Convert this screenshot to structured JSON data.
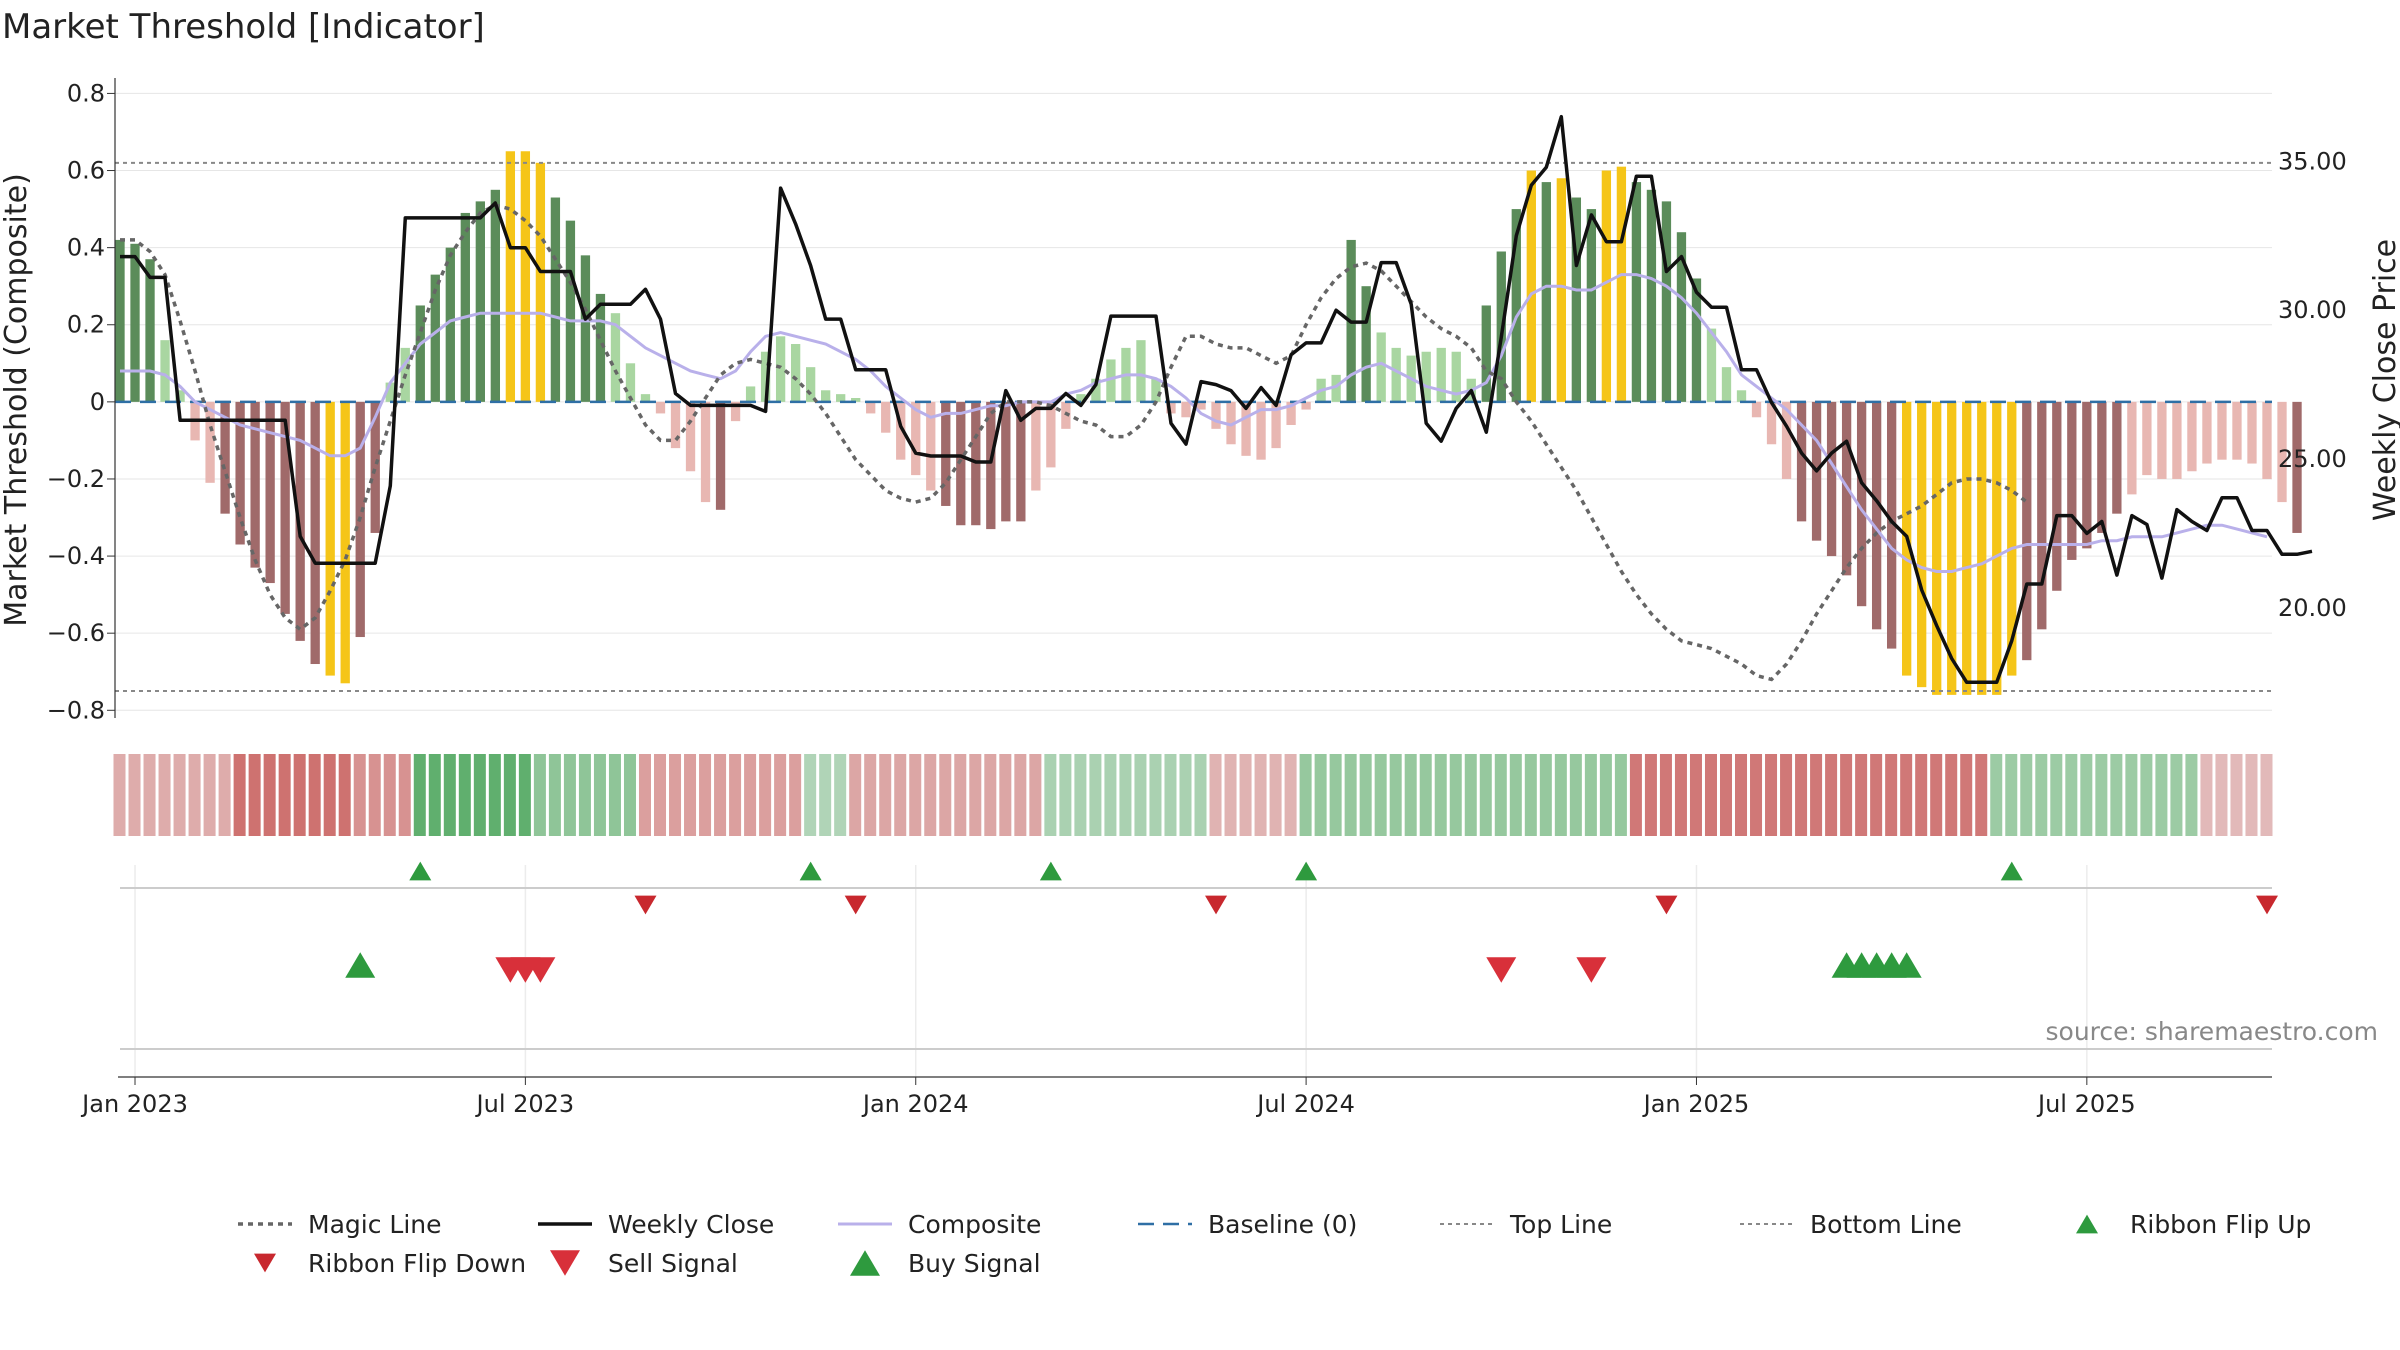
{
  "title": "Market Threshold [Indicator]",
  "source": "source: sharemaestro.com",
  "chart_data": {
    "type": "line",
    "ylabel_left": "Market Threshold (Composite)",
    "ylabel_right": "Weekly Close Price",
    "ylim_left": [
      -0.82,
      0.84
    ],
    "ylim_right": [
      16.3,
      37.8
    ],
    "yticks_left": [
      0.8,
      0.6,
      0.4,
      0.2,
      0,
      -0.2,
      -0.4,
      -0.6,
      -0.8
    ],
    "yticks_left_labels": [
      "0.8",
      "0.6",
      "0.4",
      "0.2",
      "0",
      "−0.2",
      "−0.4",
      "−0.6",
      "−0.8"
    ],
    "yticks_right": [
      35,
      30,
      25,
      20
    ],
    "yticks_right_labels": [
      "35.00",
      "30.00",
      "25.00",
      "20.00"
    ],
    "x_start_week": 0,
    "x_end_week": 143,
    "x_ticks": [
      {
        "label": "Jan 2023",
        "week": 1
      },
      {
        "label": "Jul 2023",
        "week": 27
      },
      {
        "label": "Jan 2024",
        "week": 53
      },
      {
        "label": "Jul 2024",
        "week": 79
      },
      {
        "label": "Jan 2025",
        "week": 105
      },
      {
        "label": "Jul 2025",
        "week": 131
      }
    ],
    "top_line": 0.62,
    "bottom_line": -0.75,
    "baseline": 0,
    "composite_bars": [
      0.42,
      0.41,
      0.37,
      0.16,
      0.03,
      -0.1,
      -0.21,
      -0.29,
      -0.37,
      -0.43,
      -0.47,
      -0.55,
      -0.62,
      -0.68,
      -0.71,
      -0.73,
      -0.61,
      -0.34,
      0.05,
      0.14,
      0.25,
      0.33,
      0.4,
      0.49,
      0.52,
      0.55,
      0.65,
      0.65,
      0.62,
      0.53,
      0.47,
      0.38,
      0.28,
      0.23,
      0.1,
      0.02,
      -0.03,
      -0.12,
      -0.18,
      -0.26,
      -0.28,
      -0.05,
      0.04,
      0.13,
      0.17,
      0.15,
      0.09,
      0.03,
      0.02,
      0.01,
      -0.03,
      -0.08,
      -0.15,
      -0.19,
      -0.23,
      -0.27,
      -0.32,
      -0.32,
      -0.33,
      -0.31,
      -0.31,
      -0.23,
      -0.17,
      -0.07,
      0.02,
      0.06,
      0.11,
      0.14,
      0.16,
      0.06,
      -0.03,
      -0.04,
      -0.02,
      -0.07,
      -0.11,
      -0.14,
      -0.15,
      -0.12,
      -0.06,
      -0.02,
      0.06,
      0.07,
      0.42,
      0.3,
      0.18,
      0.14,
      0.12,
      0.13,
      0.14,
      0.13,
      0.06,
      0.25,
      0.39,
      0.5,
      0.6,
      0.57,
      0.58,
      0.53,
      0.5,
      0.6,
      0.61,
      0.57,
      0.55,
      0.52,
      0.44,
      0.32,
      0.19,
      0.09,
      0.03,
      -0.04,
      -0.11,
      -0.2,
      -0.31,
      -0.36,
      -0.4,
      -0.45,
      -0.53,
      -0.59,
      -0.64,
      -0.71,
      -0.74,
      -0.76,
      -0.76,
      -0.76,
      -0.76,
      -0.76,
      -0.71,
      -0.67,
      -0.59,
      -0.49,
      -0.41,
      -0.38,
      -0.34,
      -0.29,
      -0.24,
      -0.19,
      -0.2,
      -0.2,
      -0.18,
      -0.16,
      -0.15,
      -0.15,
      -0.16,
      -0.2,
      -0.26,
      -0.34
    ],
    "composite_line": [
      0.08,
      0.08,
      0.08,
      0.07,
      0.04,
      0.0,
      -0.02,
      -0.04,
      -0.06,
      -0.07,
      -0.08,
      -0.09,
      -0.1,
      -0.12,
      -0.14,
      -0.14,
      -0.12,
      -0.04,
      0.05,
      0.1,
      0.15,
      0.18,
      0.21,
      0.22,
      0.23,
      0.23,
      0.23,
      0.23,
      0.23,
      0.22,
      0.21,
      0.21,
      0.21,
      0.2,
      0.17,
      0.14,
      0.12,
      0.1,
      0.08,
      0.07,
      0.06,
      0.08,
      0.13,
      0.17,
      0.18,
      0.17,
      0.16,
      0.15,
      0.13,
      0.11,
      0.08,
      0.04,
      0.01,
      -0.02,
      -0.04,
      -0.03,
      -0.03,
      -0.02,
      -0.01,
      -0.01,
      0.0,
      0.0,
      0.0,
      0.02,
      0.03,
      0.05,
      0.06,
      0.07,
      0.07,
      0.06,
      0.04,
      0.01,
      -0.03,
      -0.05,
      -0.06,
      -0.04,
      -0.02,
      -0.02,
      -0.01,
      0.01,
      0.03,
      0.04,
      0.07,
      0.09,
      0.1,
      0.08,
      0.06,
      0.04,
      0.03,
      0.02,
      0.03,
      0.05,
      0.12,
      0.22,
      0.28,
      0.3,
      0.3,
      0.29,
      0.29,
      0.31,
      0.33,
      0.33,
      0.32,
      0.3,
      0.27,
      0.23,
      0.18,
      0.13,
      0.07,
      0.04,
      0.01,
      -0.02,
      -0.06,
      -0.1,
      -0.16,
      -0.22,
      -0.28,
      -0.33,
      -0.38,
      -0.41,
      -0.43,
      -0.44,
      -0.44,
      -0.43,
      -0.42,
      -0.4,
      -0.38,
      -0.37,
      -0.37,
      -0.37,
      -0.37,
      -0.37,
      -0.36,
      -0.36,
      -0.35,
      -0.35,
      -0.35,
      -0.34,
      -0.33,
      -0.32,
      -0.32,
      -0.33,
      -0.34,
      -0.35
    ],
    "magic_line": [
      0.42,
      0.42,
      0.39,
      0.33,
      0.21,
      0.08,
      -0.06,
      -0.18,
      -0.3,
      -0.41,
      -0.5,
      -0.56,
      -0.59,
      -0.56,
      -0.49,
      -0.41,
      -0.3,
      -0.17,
      -0.05,
      0.07,
      0.18,
      0.29,
      0.38,
      0.44,
      0.49,
      0.51,
      0.5,
      0.47,
      0.43,
      0.37,
      0.31,
      0.24,
      0.16,
      0.08,
      0.01,
      -0.06,
      -0.1,
      -0.1,
      -0.05,
      0.01,
      0.07,
      0.1,
      0.11,
      0.1,
      0.09,
      0.06,
      0.02,
      -0.03,
      -0.09,
      -0.15,
      -0.19,
      -0.23,
      -0.25,
      -0.26,
      -0.25,
      -0.21,
      -0.15,
      -0.09,
      -0.03,
      0.0,
      0.0,
      0.0,
      -0.01,
      -0.03,
      -0.05,
      -0.06,
      -0.09,
      -0.09,
      -0.06,
      0.0,
      0.09,
      0.17,
      0.17,
      0.15,
      0.14,
      0.14,
      0.12,
      0.1,
      0.12,
      0.2,
      0.27,
      0.32,
      0.35,
      0.36,
      0.34,
      0.3,
      0.26,
      0.22,
      0.19,
      0.17,
      0.14,
      0.08,
      0.06,
      0.0,
      -0.05,
      -0.11,
      -0.17,
      -0.23,
      -0.3,
      -0.37,
      -0.44,
      -0.5,
      -0.55,
      -0.59,
      -0.62,
      -0.63,
      -0.64,
      -0.66,
      -0.68,
      -0.71,
      -0.72,
      -0.68,
      -0.62,
      -0.55,
      -0.49,
      -0.43,
      -0.38,
      -0.34,
      -0.31,
      -0.29,
      -0.27,
      -0.24,
      -0.21,
      -0.2,
      -0.2,
      -0.21,
      -0.23,
      -0.26
    ],
    "magic_line_weeks_offset": 0,
    "weekly_close": [
      31.8,
      31.8,
      31.1,
      31.1,
      26.3,
      26.3,
      26.3,
      26.3,
      26.3,
      26.3,
      26.3,
      26.3,
      22.4,
      21.5,
      21.5,
      21.5,
      21.5,
      21.5,
      24.1,
      33.1,
      33.1,
      33.1,
      33.1,
      33.1,
      33.1,
      33.6,
      32.1,
      32.1,
      31.3,
      31.3,
      31.3,
      29.7,
      30.2,
      30.2,
      30.2,
      30.7,
      29.7,
      27.2,
      26.8,
      26.8,
      26.8,
      26.8,
      26.8,
      26.6,
      34.1,
      32.9,
      31.5,
      29.7,
      29.7,
      28.0,
      28.0,
      28.0,
      26.1,
      25.2,
      25.1,
      25.1,
      25.1,
      24.9,
      24.9,
      27.3,
      26.3,
      26.7,
      26.7,
      27.2,
      26.8,
      27.5,
      29.8,
      29.8,
      29.8,
      29.8,
      26.2,
      25.5,
      27.6,
      27.5,
      27.3,
      26.7,
      27.4,
      26.8,
      28.5,
      28.9,
      28.9,
      30.0,
      29.6,
      29.6,
      31.6,
      31.6,
      30.2,
      26.2,
      25.6,
      26.7,
      27.3,
      25.9,
      29.1,
      32.5,
      34.2,
      34.8,
      36.5,
      31.5,
      33.2,
      32.3,
      32.3,
      34.5,
      34.5,
      31.3,
      31.8,
      30.6,
      30.1,
      30.1,
      28.0,
      28.0,
      26.9,
      26.1,
      25.2,
      24.6,
      25.2,
      25.6,
      24.2,
      23.6,
      22.9,
      22.4,
      20.6,
      19.4,
      18.3,
      17.5,
      17.5,
      17.5,
      18.9,
      20.8,
      20.8,
      23.1,
      23.1,
      22.5,
      22.9,
      21.1,
      23.1,
      22.8,
      21.0,
      23.3,
      22.9,
      22.6,
      23.7,
      23.7,
      22.6,
      22.6,
      21.8,
      21.8,
      21.9
    ],
    "bar_colors_legend": {
      "strong_up": "#5b8c5a",
      "weak_up": "#a9d6a1",
      "strong_down": "#a06a6a",
      "weak_down": "#e8b7b2",
      "extreme": "#f5c518"
    },
    "ribbon": [
      {
        "weeks": [
          0,
          8
        ],
        "tone": "down",
        "strength": 0.35
      },
      {
        "weeks": [
          8,
          16
        ],
        "tone": "down",
        "strength": 0.8
      },
      {
        "weeks": [
          16,
          20
        ],
        "tone": "down",
        "strength": 0.55
      },
      {
        "weeks": [
          20,
          28
        ],
        "tone": "up",
        "strength": 0.9
      },
      {
        "weeks": [
          28,
          35
        ],
        "tone": "up",
        "strength": 0.55
      },
      {
        "weeks": [
          35,
          46
        ],
        "tone": "down",
        "strength": 0.45
      },
      {
        "weeks": [
          46,
          49
        ],
        "tone": "up",
        "strength": 0.3
      },
      {
        "weeks": [
          49,
          62
        ],
        "tone": "down",
        "strength": 0.4
      },
      {
        "weeks": [
          62,
          73
        ],
        "tone": "up",
        "strength": 0.35
      },
      {
        "weeks": [
          73,
          79
        ],
        "tone": "down",
        "strength": 0.3
      },
      {
        "weeks": [
          79,
          101
        ],
        "tone": "up",
        "strength": 0.5
      },
      {
        "weeks": [
          101,
          125
        ],
        "tone": "down",
        "strength": 0.75
      },
      {
        "weeks": [
          125,
          139
        ],
        "tone": "up",
        "strength": 0.45
      },
      {
        "weeks": [
          139,
          144
        ],
        "tone": "down",
        "strength": 0.25
      }
    ],
    "ribbon_flip_up_weeks": [
      20,
      46,
      62,
      79,
      126
    ],
    "ribbon_flip_down_weeks": [
      35,
      49,
      73,
      103,
      143
    ],
    "buy_signal_weeks": [
      16,
      115,
      116,
      117,
      118,
      119
    ],
    "sell_signal_weeks": [
      26,
      27,
      28,
      92,
      98
    ],
    "legend": [
      "Magic Line",
      "Weekly Close",
      "Composite",
      "Baseline (0)",
      "Top Line",
      "Bottom Line",
      "Ribbon Flip Up",
      "Ribbon Flip Down",
      "Sell Signal",
      "Buy Signal"
    ]
  }
}
